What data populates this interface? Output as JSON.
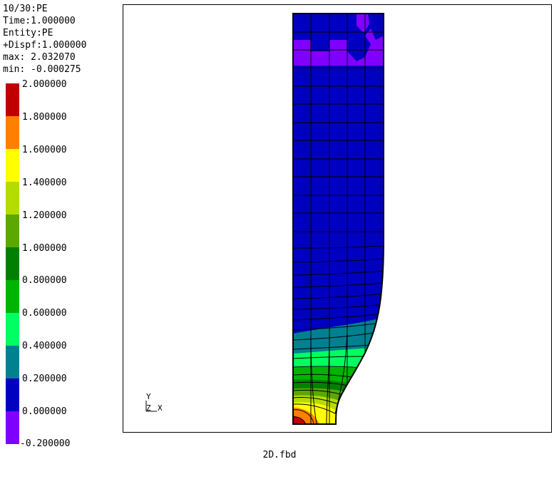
{
  "info": {
    "lines": [
      "10/30:PE",
      "Time:1.000000",
      "Entity:PE",
      "+Dispf:1.000000",
      "max: 2.032070",
      "min: -0.000275"
    ]
  },
  "legend": {
    "labels": [
      "2.000000",
      "1.800000",
      "1.600000",
      "1.400000",
      "1.200000",
      "1.000000",
      "0.800000",
      "0.600000",
      "0.400000",
      "0.200000",
      "0.000000",
      "-0.200000"
    ],
    "colors": [
      "#c00000",
      "#ff8000",
      "#ffff00",
      "#b4dc00",
      "#5aa800",
      "#008000",
      "#00b400",
      "#00ff60",
      "#008090",
      "#0000c0",
      "#8000ff"
    ]
  },
  "axes": {
    "y_label": "Y",
    "z_label": "Z",
    "x_label": "X"
  },
  "caption": "2D.fbd"
}
